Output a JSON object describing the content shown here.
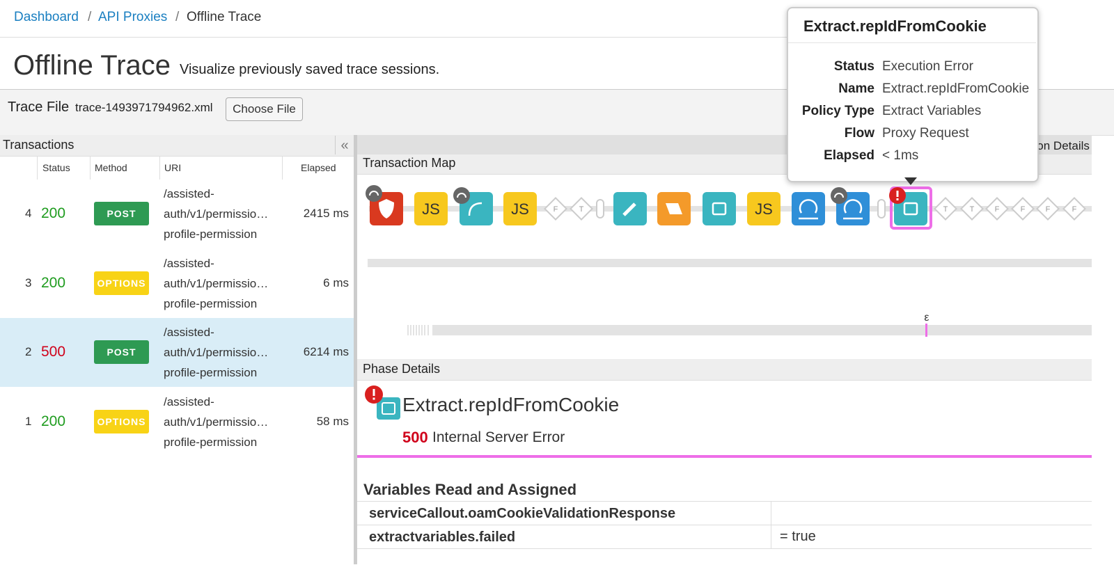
{
  "breadcrumb": {
    "items": [
      "Dashboard",
      "API Proxies",
      "Offline Trace"
    ],
    "separator": "/"
  },
  "header": {
    "title": "Offline Trace",
    "subtitle": "Visualize previously saved trace sessions."
  },
  "trace_file": {
    "label": "Trace File",
    "file": "trace-1493971794962.xml",
    "button": "Choose File"
  },
  "transactions": {
    "title": "Transactions",
    "collapse": "«",
    "columns": [
      "Status",
      "Method",
      "URI",
      "Elapsed"
    ],
    "rows": [
      {
        "index": 4,
        "status": 200,
        "method": "POST",
        "uri": [
          "/assisted-",
          "auth/v1/permissio…",
          "profile-permission"
        ],
        "elapsed": "2415 ms"
      },
      {
        "index": 3,
        "status": 200,
        "method": "OPTIONS",
        "uri": [
          "/assisted-",
          "auth/v1/permissio…",
          "profile-permission"
        ],
        "elapsed": "6 ms"
      },
      {
        "index": 2,
        "status": 500,
        "method": "POST",
        "uri": [
          "/assisted-",
          "auth/v1/permissio…",
          "profile-permission"
        ],
        "elapsed": "6214 ms"
      },
      {
        "index": 1,
        "status": 200,
        "method": "OPTIONS",
        "uri": [
          "/assisted-",
          "auth/v1/permissio…",
          "profile-permission"
        ],
        "elapsed": "58 ms"
      }
    ]
  },
  "details_tab": "Transaction Details",
  "transaction_map": {
    "title": "Transaction Map",
    "js_labels": [
      "JS",
      "JS",
      "JS"
    ],
    "flow_labels": [
      "F",
      "T",
      "T",
      "T",
      "F",
      "F",
      "F",
      "F"
    ],
    "marker": "ε"
  },
  "phase_details": {
    "title": "Phase Details",
    "policy": "Extract.repIdFromCookie",
    "status_code": 500,
    "status_text": "Internal Server Error"
  },
  "variables": {
    "title": "Variables Read and Assigned",
    "rows": [
      {
        "name": "serviceCallout.oamCookieValidationResponse"
      },
      {
        "name": "extractvariables.failed",
        "value": "= true"
      }
    ]
  },
  "tooltip": {
    "title": "Extract.repIdFromCookie",
    "fields": [
      {
        "label": "Status",
        "value": "Execution Error"
      },
      {
        "label": "Name",
        "value": "Extract.repIdFromCookie"
      },
      {
        "label": "Policy Type",
        "value": "Extract Variables"
      },
      {
        "label": "Flow",
        "value": "Proxy Request"
      },
      {
        "label": "Elapsed",
        "value": "< 1ms"
      }
    ]
  }
}
